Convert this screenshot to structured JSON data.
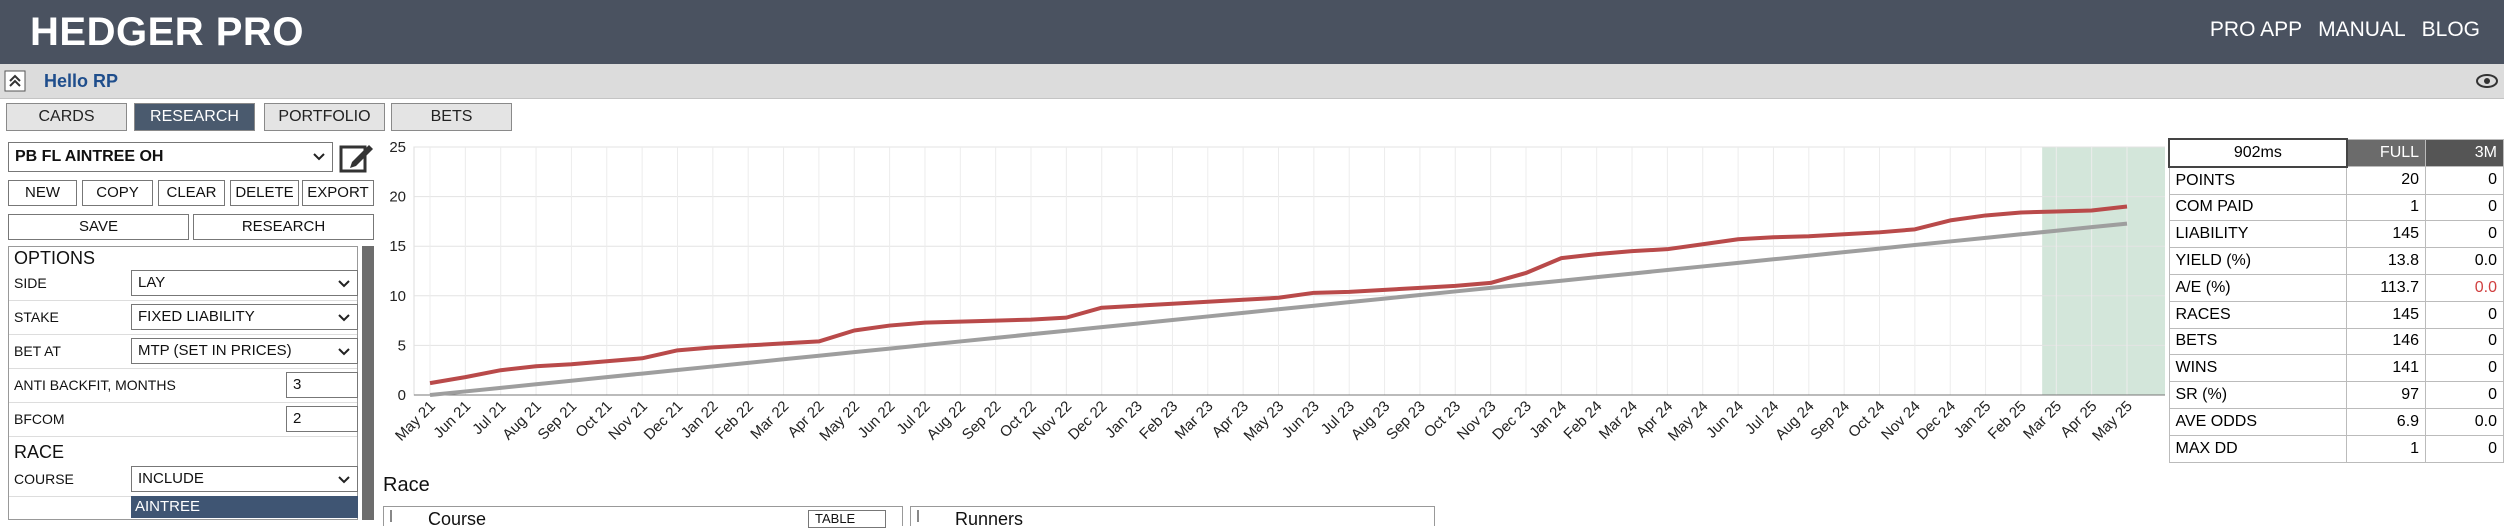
{
  "header": {
    "title": "HEDGER PRO",
    "nav": [
      "PRO APP",
      "MANUAL",
      "BLOG"
    ]
  },
  "greeting": "Hello RP",
  "tabs": [
    "CARDS",
    "RESEARCH",
    "PORTFOLIO",
    "BETS"
  ],
  "active_tab": 1,
  "sidebar": {
    "system": "PB FL AINTREE OH",
    "actions": [
      "NEW",
      "COPY",
      "CLEAR",
      "DELETE",
      "EXPORT"
    ],
    "actions2": [
      "SAVE",
      "RESEARCH"
    ],
    "options": {
      "title": "OPTIONS",
      "fields": [
        {
          "label": "SIDE",
          "value": "LAY"
        },
        {
          "label": "STAKE",
          "value": "FIXED LIABILITY"
        },
        {
          "label": "BET AT",
          "value": "MTP (SET IN PRICES)"
        },
        {
          "label": "ANTI BACKFIT, MONTHS",
          "value": "3"
        },
        {
          "label": "BFCOM",
          "value": "2"
        }
      ]
    },
    "race": {
      "title": "RACE",
      "fields": [
        {
          "label": "COURSE",
          "value": "INCLUDE"
        }
      ],
      "selected": "AINTREE"
    }
  },
  "stats": {
    "timer": "902ms",
    "columns": [
      "FULL",
      "3M"
    ],
    "rows": [
      [
        "POINTS",
        "20",
        "0"
      ],
      [
        "COM PAID",
        "1",
        "0"
      ],
      [
        "LIABILITY",
        "145",
        "0"
      ],
      [
        "YIELD (%)",
        "13.8",
        "0.0"
      ],
      [
        "A/E (%)",
        "113.7",
        "0.0"
      ],
      [
        "RACES",
        "145",
        "0"
      ],
      [
        "BETS",
        "146",
        "0"
      ],
      [
        "WINS",
        "141",
        "0"
      ],
      [
        "SR (%)",
        "97",
        "0"
      ],
      [
        "AVE ODDS",
        "6.9",
        "0.0"
      ],
      [
        "MAX DD",
        "1",
        "0"
      ]
    ]
  },
  "bottom": {
    "title": "Race",
    "panels": [
      {
        "title": "Course",
        "control": "TABLE"
      },
      {
        "title": "Runners"
      }
    ]
  },
  "chart_data": {
    "type": "line",
    "categories": [
      "May 21",
      "Jun 21",
      "Jul 21",
      "Aug 21",
      "Sep 21",
      "Oct 21",
      "Nov 21",
      "Dec 21",
      "Jan 22",
      "Feb 22",
      "Mar 22",
      "Apr 22",
      "May 22",
      "Jun 22",
      "Jul 22",
      "Aug 22",
      "Sep 22",
      "Oct 22",
      "Nov 22",
      "Dec 22",
      "Jan 23",
      "Feb 23",
      "Mar 23",
      "Apr 23",
      "May 23",
      "Jun 23",
      "Jul 23",
      "Aug 23",
      "Sep 23",
      "Oct 23",
      "Nov 23",
      "Dec 23",
      "Jan 24",
      "Feb 24",
      "Mar 24",
      "Apr 24",
      "May 24",
      "Jun 24",
      "Jul 24",
      "Aug 24",
      "Sep 24",
      "Oct 24",
      "Nov 24",
      "Dec 24",
      "Jan 25",
      "Feb 25",
      "Mar 25",
      "Apr 25",
      "May 25"
    ],
    "series": [
      {
        "color": "#9e9e9e",
        "values": [
          0,
          0.36,
          0.72,
          1.08,
          1.44,
          1.8,
          2.16,
          2.52,
          2.88,
          3.24,
          3.6,
          3.96,
          4.32,
          4.68,
          5.04,
          5.4,
          5.76,
          6.12,
          6.48,
          6.84,
          7.2,
          7.56,
          7.92,
          8.28,
          8.64,
          9.0,
          9.36,
          9.72,
          10.08,
          10.44,
          10.8,
          11.16,
          11.52,
          11.88,
          12.24,
          12.6,
          12.96,
          13.32,
          13.68,
          14.04,
          14.4,
          14.76,
          15.12,
          15.48,
          15.84,
          16.2,
          16.56,
          16.92,
          17.28
        ]
      },
      {
        "color": "#b94a4a",
        "values": [
          1.2,
          1.8,
          2.5,
          2.9,
          3.1,
          3.4,
          3.7,
          4.5,
          4.8,
          5.0,
          5.2,
          5.4,
          6.5,
          7.0,
          7.3,
          7.4,
          7.5,
          7.6,
          7.8,
          8.8,
          9.0,
          9.2,
          9.4,
          9.6,
          9.8,
          10.3,
          10.4,
          10.6,
          10.8,
          11.0,
          11.3,
          12.3,
          13.8,
          14.2,
          14.5,
          14.7,
          15.2,
          15.7,
          15.9,
          16.0,
          16.2,
          16.4,
          16.7,
          17.6,
          18.1,
          18.4,
          18.5,
          18.6,
          19.0
        ]
      }
    ],
    "ylim": [
      0,
      25
    ],
    "yticks": [
      0,
      5,
      10,
      15,
      20,
      25
    ],
    "grid": true,
    "highlight": {
      "from": "Mar 25",
      "to": "May 25",
      "color": "#d3e6da"
    }
  }
}
